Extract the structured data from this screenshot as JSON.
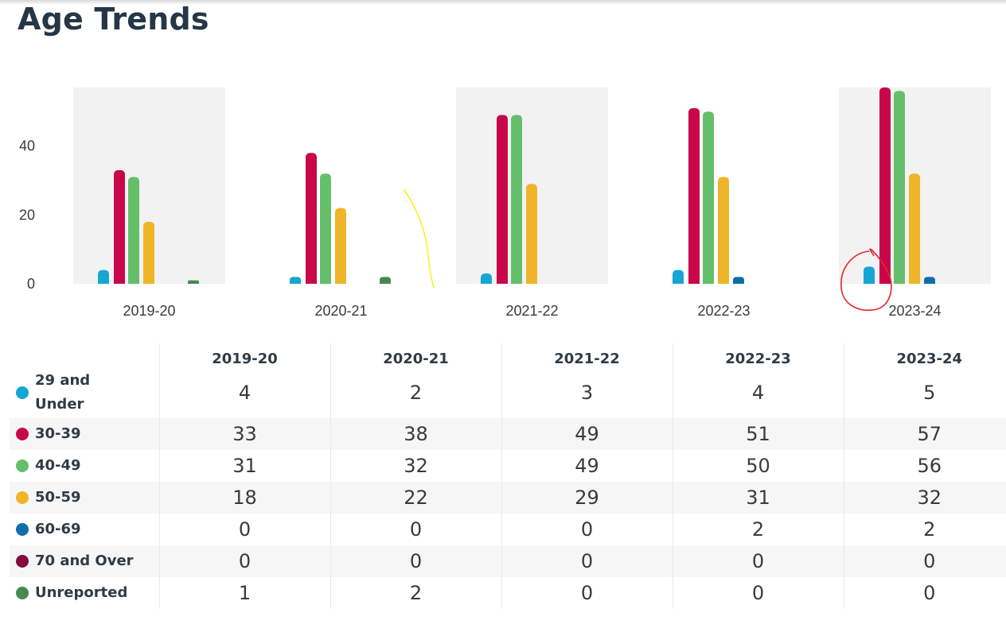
{
  "page_title": "Age Trends",
  "chart_data": {
    "type": "bar",
    "title": "",
    "xlabel": "",
    "ylabel": "",
    "ylim": [
      0,
      57
    ],
    "yticks": [
      0,
      20,
      40
    ],
    "grid": false,
    "legend": "none",
    "categories": [
      "2019-20",
      "2020-21",
      "2021-22",
      "2022-23",
      "2023-24"
    ],
    "series": [
      {
        "name": "29 and Under",
        "color": "#15a6d3",
        "values": [
          4,
          2,
          3,
          4,
          5
        ]
      },
      {
        "name": "30-39",
        "color": "#c8074a",
        "values": [
          33,
          38,
          49,
          51,
          57
        ]
      },
      {
        "name": "40-49",
        "color": "#65be6a",
        "values": [
          31,
          32,
          49,
          50,
          56
        ]
      },
      {
        "name": "50-59",
        "color": "#f0b428",
        "values": [
          18,
          22,
          29,
          31,
          32
        ]
      },
      {
        "name": "60-69",
        "color": "#0e6ea8",
        "values": [
          0,
          0,
          0,
          2,
          2
        ]
      },
      {
        "name": "70 and Over",
        "color": "#860c3a",
        "values": [
          0,
          0,
          0,
          0,
          0
        ]
      },
      {
        "name": "Unreported",
        "color": "#458a50",
        "values": [
          1,
          2,
          0,
          0,
          0
        ]
      }
    ]
  }
}
